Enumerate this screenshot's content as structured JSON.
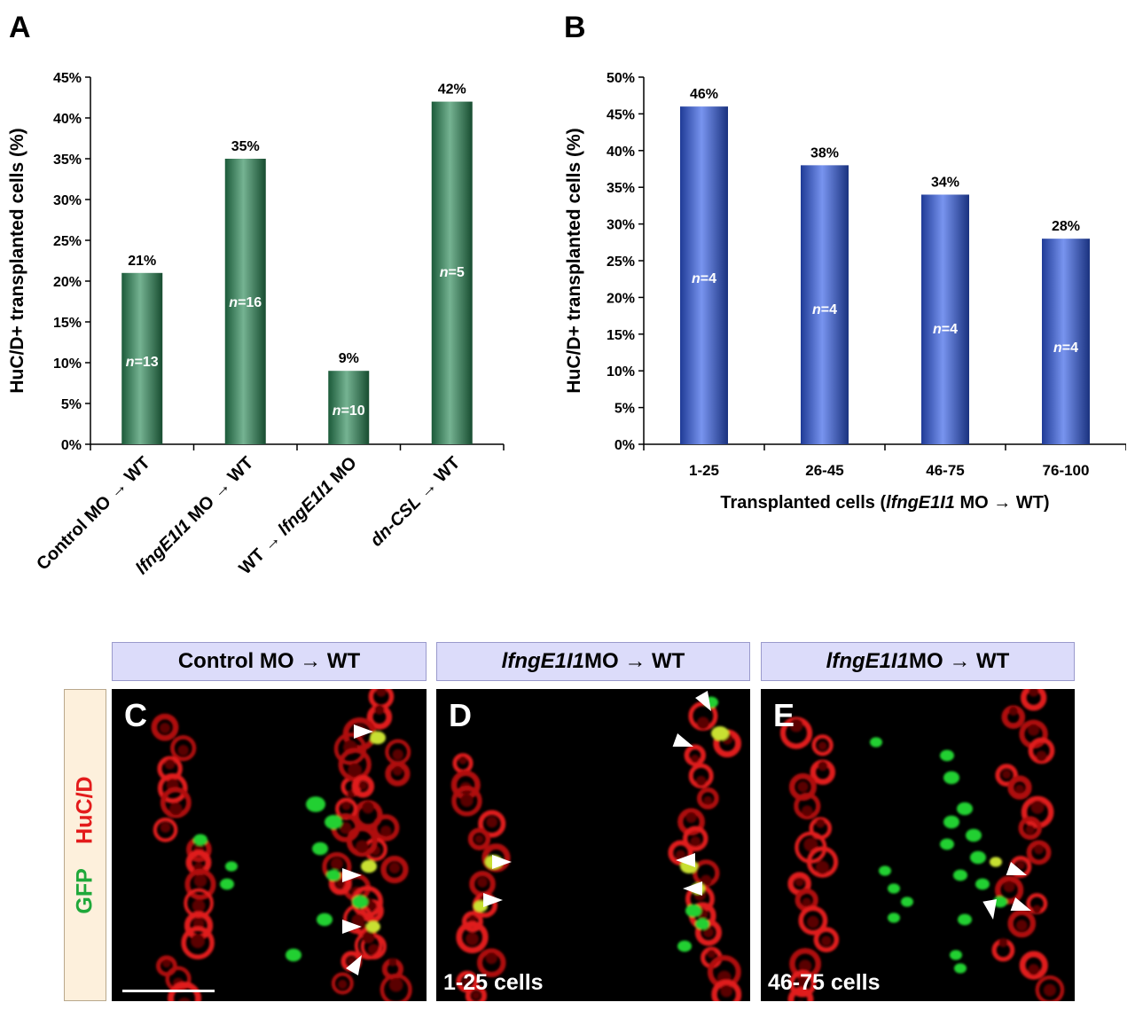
{
  "panel_letters": {
    "a": "A",
    "b": "B",
    "c": "C",
    "d": "D",
    "e": "E"
  },
  "chart_data": [
    {
      "type": "bar",
      "panel": "A",
      "ylabel": "HuC/D+ transplanted cells (%)",
      "xlabel": "",
      "ylim": [
        0,
        45
      ],
      "yticks": [
        0,
        5,
        10,
        15,
        20,
        25,
        30,
        35,
        40,
        45
      ],
      "categories": [
        {
          "parts": [
            {
              "t": "Control MO",
              "i": false
            },
            {
              "t": " → WT",
              "i": false
            }
          ]
        },
        {
          "parts": [
            {
              "t": "lfngE1I1",
              "i": true
            },
            {
              "t": " MO → WT",
              "i": false
            }
          ]
        },
        {
          "parts": [
            {
              "t": "WT → ",
              "i": false
            },
            {
              "t": "lfngE1I1",
              "i": true
            },
            {
              "t": " MO",
              "i": false
            }
          ]
        },
        {
          "parts": [
            {
              "t": "dn-CSL",
              "i": true
            },
            {
              "t": " → WT",
              "i": false
            }
          ]
        }
      ],
      "values": [
        21,
        35,
        9,
        42
      ],
      "value_labels": [
        "21%",
        "35%",
        "9%",
        "42%"
      ],
      "n_labels": [
        "13",
        "16",
        "10",
        "5"
      ],
      "bar_color": "#2a8a57"
    },
    {
      "type": "bar",
      "panel": "B",
      "ylabel": "HuC/D+ transplanted cells (%)",
      "xlabel_parts": [
        {
          "t": "Transplanted cells (",
          "i": false
        },
        {
          "t": "lfngE1I1",
          "i": true
        },
        {
          "t": " MO → WT)",
          "i": false
        }
      ],
      "ylim": [
        0,
        50
      ],
      "yticks": [
        0,
        5,
        10,
        15,
        20,
        25,
        30,
        35,
        40,
        45,
        50
      ],
      "categories": [
        "1-25",
        "26-45",
        "46-75",
        "76-100"
      ],
      "values": [
        46,
        38,
        34,
        28
      ],
      "value_labels": [
        "46%",
        "38%",
        "34%",
        "28%"
      ],
      "n_labels": [
        "4",
        "4",
        "4",
        "4"
      ],
      "bar_color": "#2f5ae6"
    }
  ],
  "micrographs": {
    "headers": [
      {
        "parts": [
          {
            "t": "Control MO → WT",
            "i": false
          }
        ]
      },
      {
        "parts": [
          {
            "t": "lfngE1I1",
            "i": true
          },
          {
            "t": " MO → WT",
            "i": false
          }
        ]
      },
      {
        "parts": [
          {
            "t": "lfngE1I1",
            "i": true
          },
          {
            "t": " MO → WT",
            "i": false
          }
        ]
      }
    ],
    "side_label": {
      "gfp": "GFP",
      "hucd": "HuC/D",
      "gfp_color": "#1fa83a",
      "hucd_color": "#e31b1b"
    },
    "captions": {
      "d": "1-25 cells",
      "e": "46-75 cells"
    }
  },
  "n_prefix": "n",
  "n_eq": "="
}
